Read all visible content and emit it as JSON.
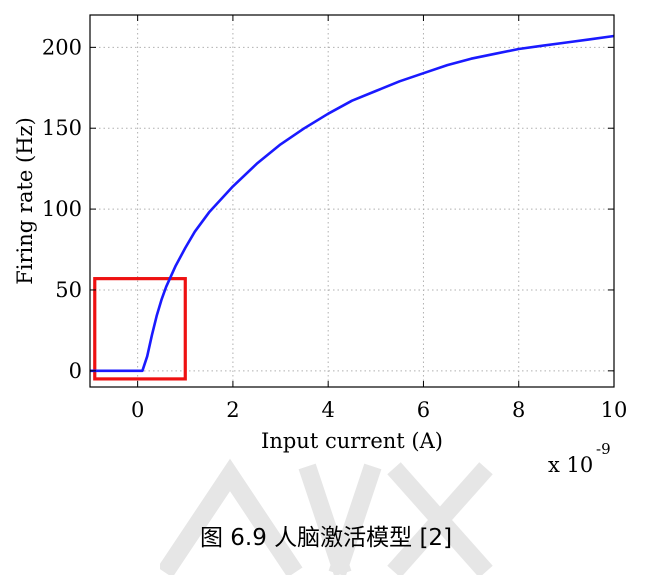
{
  "chart_data": {
    "type": "line",
    "xlabel": "Input current (A)",
    "ylabel": "Firing rate (Hz)",
    "x_multiplier_label": "x 10",
    "x_multiplier_exponent": "-9",
    "xlim": [
      -1,
      10
    ],
    "ylim": [
      -10,
      220
    ],
    "xticks": [
      0,
      2,
      4,
      6,
      8,
      10
    ],
    "yticks": [
      0,
      50,
      100,
      150,
      200
    ],
    "grid": true,
    "series": [
      {
        "color": "#1a1aff",
        "x": [
          -1.0,
          -0.5,
          0.0,
          0.1,
          0.2,
          0.3,
          0.4,
          0.5,
          0.6,
          0.8,
          1.0,
          1.2,
          1.5,
          2.0,
          2.5,
          3.0,
          3.5,
          4.0,
          4.5,
          5.0,
          5.5,
          6.0,
          6.5,
          7.0,
          7.5,
          8.0,
          8.5,
          9.0,
          9.5,
          10.0
        ],
        "y": [
          0,
          0,
          0,
          0,
          9,
          22,
          34,
          44,
          52,
          65,
          76,
          86,
          98,
          114,
          128,
          140,
          150,
          159,
          167,
          173,
          179,
          184,
          189,
          193,
          196,
          199,
          201,
          203,
          205,
          207
        ]
      }
    ],
    "annotation_box": {
      "x_range": [
        -0.9,
        1.0
      ],
      "y_range": [
        -5,
        57
      ],
      "color": "#ee1111"
    }
  },
  "caption": "图 6.9 人脑激活模型 [2]",
  "colors": {
    "line": "#1a1aff",
    "box": "#ee1111",
    "grid": "#b0b0b0"
  }
}
